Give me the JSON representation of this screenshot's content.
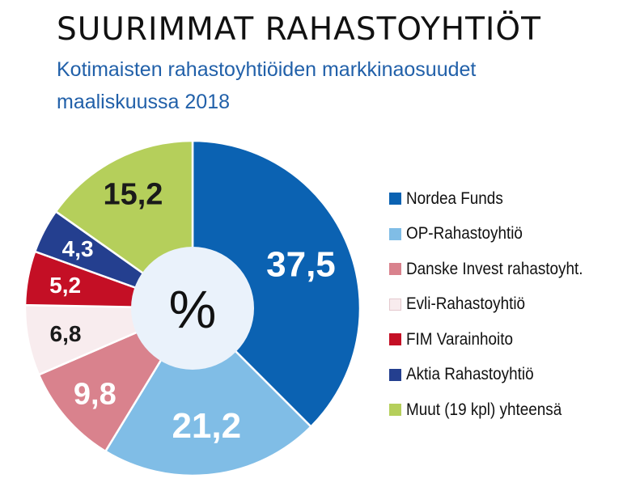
{
  "chart_data": {
    "type": "pie",
    "title": "SUURIMMAT RAHASTOYHTIÖT",
    "subtitle": "Kotimaisten rahastoyhtiöiden markkinaosuudet maaliskuussa 2018",
    "center_label": "%",
    "legend_position": "right",
    "slices": [
      {
        "name": "Nordea Funds",
        "value": 37.5,
        "label": "37,5",
        "color": "#0b62b2",
        "label_color": "#ffffff"
      },
      {
        "name": "OP-Rahastoyhtiö",
        "value": 21.2,
        "label": "21,2",
        "color": "#80bde6",
        "label_color": "#ffffff"
      },
      {
        "name": "Danske Invest rahastoyht.",
        "value": 9.8,
        "label": "9,8",
        "color": "#d9828d",
        "label_color": "#ffffff"
      },
      {
        "name": "Evli-Rahastoyhtiö",
        "value": 6.8,
        "label": "6,8",
        "color": "#f8ecee",
        "label_color": "#1a1a1a"
      },
      {
        "name": "FIM Varainhoito",
        "value": 5.2,
        "label": "5,2",
        "color": "#c40f25",
        "label_color": "#ffffff"
      },
      {
        "name": "Aktia Rahastoyhtiö",
        "value": 4.3,
        "label": "4,3",
        "color": "#243f8f",
        "label_color": "#ffffff"
      },
      {
        "name": "Muut (19 kpl) yhteensä",
        "value": 15.2,
        "label": "15,2",
        "color": "#b5cf5b",
        "label_color": "#1a1a1a"
      }
    ]
  }
}
